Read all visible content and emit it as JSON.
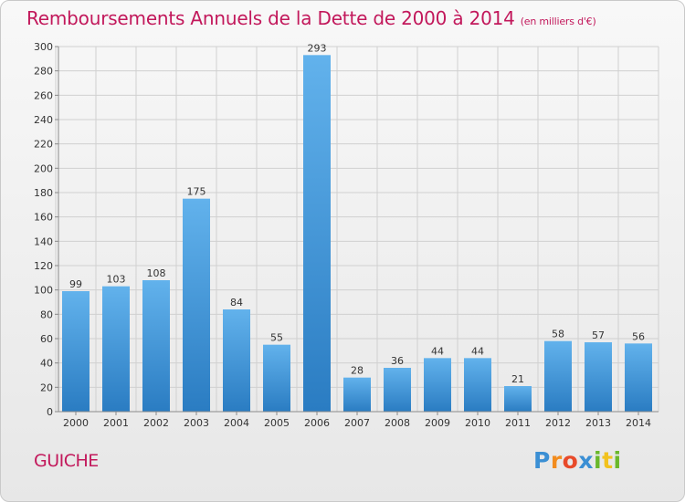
{
  "header": {
    "title": "Remboursements Annuels de la Dette de 2000 à 2014",
    "subtitle": "(en milliers d'€)"
  },
  "footer": {
    "commune": "GUICHE",
    "logo_letters": [
      "P",
      "r",
      "o",
      "x",
      "i",
      "t",
      "i"
    ],
    "logo_colors": [
      "#3b8fd4",
      "#f28c1e",
      "#e84a2a",
      "#3b8fd4",
      "#6ab82b",
      "#f2c21e",
      "#6ab82b"
    ]
  },
  "colors": {
    "accent": "#c2185b",
    "bar_top": "#62b2ec",
    "bar_bottom": "#2a7cc2",
    "grid": "#d0d0d0",
    "axis": "#8a8a8a"
  },
  "chart_data": {
    "type": "bar",
    "categories": [
      "2000",
      "2001",
      "2002",
      "2003",
      "2004",
      "2005",
      "2006",
      "2007",
      "2008",
      "2009",
      "2010",
      "2011",
      "2012",
      "2013",
      "2014"
    ],
    "values": [
      99,
      103,
      108,
      175,
      84,
      55,
      293,
      28,
      36,
      44,
      44,
      21,
      58,
      57,
      56
    ],
    "title": "Remboursements Annuels de la Dette de 2000 à 2014",
    "xlabel": "",
    "ylabel": "",
    "ylim": [
      0,
      300
    ],
    "yticks": [
      0,
      20,
      40,
      60,
      80,
      100,
      120,
      140,
      160,
      180,
      200,
      220,
      240,
      260,
      280,
      300
    ],
    "grid": true,
    "data_labels": true
  }
}
